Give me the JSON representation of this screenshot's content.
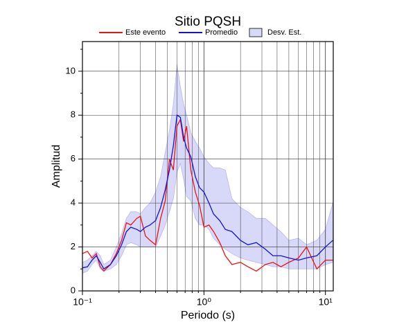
{
  "chart_data": {
    "type": "line",
    "title": "Sitio PQSH",
    "xlabel": "Periodo (s)",
    "ylabel": "Amplitud",
    "xscale": "log",
    "grid": true,
    "xlim": [
      0.1,
      11.6
    ],
    "ylim": [
      0,
      11.35
    ],
    "xticks": [
      {
        "value": 0.1,
        "label": "10⁻¹"
      },
      {
        "value": 1,
        "label": "10⁰"
      },
      {
        "value": 10,
        "label": "10¹"
      }
    ],
    "xminorticks": [
      0.2,
      0.3,
      0.4,
      0.5,
      0.6,
      0.7,
      0.8,
      0.9,
      2,
      3,
      4,
      5,
      6,
      7,
      8,
      9
    ],
    "yticks": [
      0,
      2,
      4,
      6,
      8,
      10
    ],
    "yminorticks": [
      1,
      3,
      5,
      7,
      9,
      11
    ],
    "x": [
      0.1,
      0.11,
      0.12,
      0.13,
      0.14,
      0.15,
      0.17,
      0.19,
      0.21,
      0.23,
      0.25,
      0.28,
      0.3,
      0.33,
      0.36,
      0.4,
      0.44,
      0.48,
      0.52,
      0.56,
      0.6,
      0.64,
      0.68,
      0.72,
      0.78,
      0.85,
      0.92,
      1.0,
      1.1,
      1.2,
      1.35,
      1.5,
      1.7,
      2.0,
      2.3,
      2.7,
      3.2,
      3.7,
      4.3,
      5.0,
      6.0,
      7.0,
      8.5,
      10,
      11.5
    ],
    "series": [
      {
        "name": "Este evento",
        "color": "#ee1111",
        "values": [
          1.7,
          1.8,
          1.5,
          1.7,
          1.1,
          0.9,
          1.2,
          1.7,
          2.3,
          3.1,
          3.0,
          3.3,
          3.4,
          2.5,
          2.3,
          2.1,
          3.3,
          4.1,
          6.0,
          5.5,
          7.5,
          7.8,
          6.8,
          7.5,
          5.5,
          4.5,
          3.9,
          2.9,
          3.0,
          2.7,
          2.2,
          1.6,
          1.2,
          1.3,
          1.1,
          0.9,
          1.2,
          1.3,
          1.1,
          1.3,
          1.5,
          2.0,
          1.0,
          1.4,
          1.4
        ]
      },
      {
        "name": "Promedio",
        "color": "#1111dd",
        "values": [
          1.05,
          1.1,
          1.4,
          1.6,
          1.3,
          1.0,
          1.2,
          1.6,
          2.1,
          2.7,
          2.9,
          2.8,
          2.7,
          2.9,
          3.0,
          3.2,
          3.8,
          4.6,
          5.5,
          6.6,
          8.0,
          7.9,
          7.0,
          6.5,
          6.1,
          5.2,
          4.7,
          4.5,
          4.0,
          3.5,
          3.2,
          2.8,
          2.7,
          2.3,
          2.1,
          2.2,
          1.9,
          1.6,
          1.6,
          1.5,
          1.4,
          1.5,
          1.6,
          2.0,
          2.3
        ]
      },
      {
        "name": "Desv. Est.",
        "color": "#d8d8f8",
        "lower": [
          0.8,
          0.9,
          1.2,
          1.4,
          1.0,
          0.9,
          1.0,
          1.2,
          1.6,
          2.1,
          2.2,
          2.1,
          2.0,
          2.0,
          2.0,
          2.0,
          2.5,
          3.0,
          3.6,
          4.2,
          5.4,
          5.8,
          5.1,
          4.3,
          4.1,
          3.3,
          3.0,
          3.0,
          2.8,
          2.4,
          2.1,
          1.9,
          1.7,
          1.5,
          1.4,
          1.3,
          1.2,
          1.1,
          1.1,
          1.0,
          1.0,
          1.0,
          1.0,
          1.2,
          1.3
        ],
        "upper": [
          1.3,
          1.4,
          1.6,
          1.8,
          1.6,
          1.2,
          1.4,
          2.0,
          2.6,
          3.3,
          3.6,
          3.6,
          3.5,
          3.8,
          4.0,
          4.5,
          5.2,
          6.3,
          7.3,
          8.5,
          10.3,
          9.3,
          8.5,
          8.0,
          7.2,
          6.8,
          6.5,
          6.1,
          5.8,
          5.6,
          5.6,
          5.5,
          4.2,
          3.8,
          3.6,
          3.3,
          3.3,
          3.0,
          2.7,
          2.3,
          2.4,
          2.1,
          2.3,
          2.8,
          4.0
        ]
      }
    ]
  }
}
